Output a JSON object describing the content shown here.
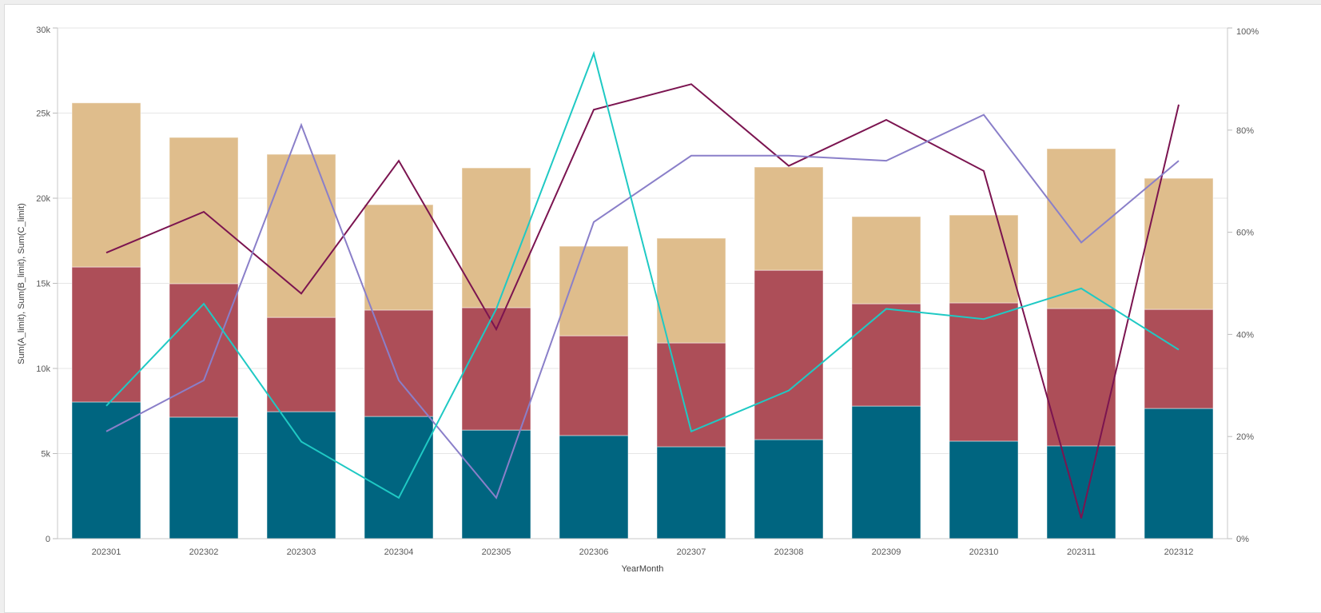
{
  "chart_data": {
    "type": "bar",
    "stacked": true,
    "categories": [
      "202301",
      "202302",
      "202303",
      "202304",
      "202305",
      "202306",
      "202307",
      "202308",
      "202309",
      "202310",
      "202311",
      "202312"
    ],
    "xlabel": "YearMonth",
    "ylabel": "Sum(A_limit), Sum(B_limit), Sum(C_limit)",
    "ylim": [
      0,
      30000
    ],
    "y_ticks": [
      "0",
      "5k",
      "10k",
      "15k",
      "20k",
      "25k",
      "30k"
    ],
    "y2lim": [
      0,
      100
    ],
    "y2_ticks": [
      "0%",
      "20%",
      "40%",
      "60%",
      "80%",
      "100%"
    ],
    "grid": true,
    "series": [
      {
        "type": "bar",
        "color": "#006580",
        "values": [
          8030,
          7140,
          7460,
          7180,
          6380,
          6060,
          5400,
          5820,
          7790,
          5730,
          5450,
          7650
        ]
      },
      {
        "type": "bar",
        "color": "#ad4e58",
        "values": [
          7930,
          7840,
          5540,
          6250,
          7190,
          5860,
          6100,
          9950,
          6010,
          8120,
          8070,
          5820
        ]
      },
      {
        "type": "bar",
        "color": "#dfbd8c",
        "values": [
          9640,
          8590,
          9580,
          6190,
          8210,
          5260,
          6150,
          6060,
          5120,
          5160,
          9390,
          7700
        ]
      },
      {
        "type": "line",
        "axis": "right",
        "unit": "%",
        "color": "#7b1450",
        "values": [
          56,
          64,
          48,
          74,
          41,
          84,
          89,
          73,
          82,
          72,
          4,
          85
        ]
      },
      {
        "type": "line",
        "axis": "right",
        "unit": "%",
        "color": "#8a7fc9",
        "values": [
          21,
          31,
          81,
          31,
          8,
          62,
          75,
          75,
          74,
          83,
          58,
          74
        ]
      },
      {
        "type": "line",
        "axis": "right",
        "unit": "%",
        "color": "#1fc9c4",
        "values": [
          26,
          46,
          19,
          8,
          45,
          95,
          21,
          29,
          45,
          43,
          49,
          37
        ]
      }
    ]
  }
}
